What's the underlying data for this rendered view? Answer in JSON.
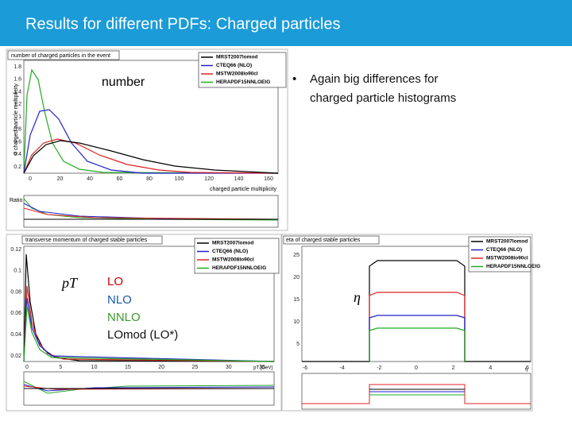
{
  "header": {
    "title": "Results for different PDFs: Charged particles"
  },
  "bullet": {
    "text": "Again big differences   for charged particle histograms"
  },
  "legend": [
    "MRST2007lomod",
    "CTEQ66 (NLO)",
    "MSTW2008lo90cl",
    "HERAPDF15NNLOEIG"
  ],
  "plots": [
    {
      "title": "number of charged particles in the event",
      "x_label": "charged particle multiplicity",
      "y_label": "d charged particle multiplicity",
      "ratio_label": "Ratio",
      "overlay": "number",
      "yticks": [
        "0.2",
        "0.4",
        "0.6",
        "0.8",
        "1",
        "1.2",
        "1.4",
        "1.6",
        "1.8"
      ],
      "xticks": [
        "0",
        "20",
        "40",
        "60",
        "80",
        "100",
        "120",
        "140",
        "160"
      ]
    },
    {
      "title": "transverse momentum of charged stable particles",
      "x_label": "pT [GeV]",
      "overlay": "pT",
      "yticks": [
        "0.02",
        "0.04",
        "0.06",
        "0.08",
        "0.1",
        "0.12"
      ],
      "xticks": [
        "0",
        "5",
        "10",
        "15",
        "20",
        "25",
        "30",
        "35"
      ],
      "orders": [
        "LO",
        "NLO",
        "NNLO",
        "LOmod (LO*)"
      ]
    },
    {
      "title": "eta of charged stable particles",
      "x_label": "η",
      "overlay": "η",
      "yticks": [
        "5",
        "10",
        "15",
        "20",
        "25"
      ],
      "xticks": [
        "-6",
        "-4",
        "-2",
        "0",
        "2",
        "4",
        "6"
      ]
    }
  ]
}
